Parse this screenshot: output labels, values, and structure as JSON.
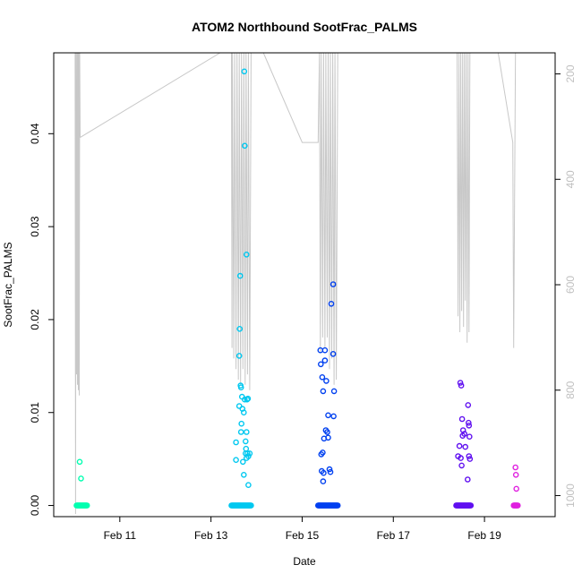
{
  "chart_data": {
    "type": "scatter",
    "title": "ATOM2 Northbound SootFrac_PALMS",
    "xlabel": "Date",
    "ylabel": "SootFrac_PALMS",
    "x_tick_labels": [
      "Feb 11",
      "Feb 13",
      "Feb 15",
      "Feb 17",
      "Feb 19"
    ],
    "x_tick_days": [
      11,
      13,
      15,
      17,
      19
    ],
    "xlim": [
      9.55,
      20.55
    ],
    "ylim": [
      -0.0012,
      0.0487
    ],
    "y_ticks": [
      0.0,
      0.01,
      0.02,
      0.03,
      0.04
    ],
    "y_tick_labels": [
      "0.00",
      "0.01",
      "0.02",
      "0.03",
      "0.04"
    ],
    "right_axis": {
      "label": "",
      "reversed": true,
      "range": [
        160,
        1040
      ],
      "ticks": [
        200,
        400,
        600,
        800,
        1000
      ],
      "tick_labels": [
        "200",
        "400",
        "600",
        "800",
        "1000"
      ],
      "color": "#c0c0c0"
    },
    "color_scale": "day (green-cyan to magenta)",
    "flights": [
      {
        "day_range": [
          10.05,
          10.28
        ],
        "color": "#00ffb0",
        "points": [
          [
            10.12,
            0.0047
          ],
          [
            10.15,
            0.0029
          ]
        ]
      },
      {
        "day_range": [
          13.45,
          13.88
        ],
        "color": "#00c8f0",
        "points": [
          [
            13.55,
            0.0068
          ],
          [
            13.55,
            0.0049
          ],
          [
            13.62,
            0.0107
          ],
          [
            13.62,
            0.0161
          ],
          [
            13.63,
            0.019
          ],
          [
            13.64,
            0.0247
          ],
          [
            13.65,
            0.0129
          ],
          [
            13.66,
            0.0127
          ],
          [
            13.66,
            0.0079
          ],
          [
            13.67,
            0.0088
          ],
          [
            13.68,
            0.0117
          ],
          [
            13.69,
            0.0104
          ],
          [
            13.7,
            0.0047
          ],
          [
            13.72,
            0.0033
          ],
          [
            13.72,
            0.01
          ],
          [
            13.73,
            0.0467
          ],
          [
            13.74,
            0.0114
          ],
          [
            13.74,
            0.0387
          ],
          [
            13.76,
            0.0069
          ],
          [
            13.76,
            0.0056
          ],
          [
            13.77,
            0.0061
          ],
          [
            13.78,
            0.0079
          ],
          [
            13.78,
            0.0051
          ],
          [
            13.78,
            0.027
          ],
          [
            13.79,
            0.0114
          ],
          [
            13.8,
            0.0056
          ],
          [
            13.81,
            0.0115
          ],
          [
            13.82,
            0.0022
          ],
          [
            13.82,
            0.0053
          ],
          [
            13.85,
            0.0056
          ]
        ]
      },
      {
        "day_range": [
          15.35,
          15.78
        ],
        "color": "#0040f0",
        "points": [
          [
            15.4,
            0.0167
          ],
          [
            15.41,
            0.0152
          ],
          [
            15.42,
            0.0055
          ],
          [
            15.43,
            0.0037
          ],
          [
            15.44,
            0.0138
          ],
          [
            15.45,
            0.0057
          ],
          [
            15.46,
            0.0123
          ],
          [
            15.46,
            0.0026
          ],
          [
            15.47,
            0.0035
          ],
          [
            15.48,
            0.0072
          ],
          [
            15.5,
            0.0156
          ],
          [
            15.5,
            0.0167
          ],
          [
            15.52,
            0.0081
          ],
          [
            15.53,
            0.0134
          ],
          [
            15.55,
            0.0079
          ],
          [
            15.57,
            0.0073
          ],
          [
            15.57,
            0.0097
          ],
          [
            15.6,
            0.0039
          ],
          [
            15.62,
            0.0036
          ],
          [
            15.64,
            0.0217
          ],
          [
            15.68,
            0.0163
          ],
          [
            15.68,
            0.0238
          ],
          [
            15.69,
            0.0096
          ],
          [
            15.7,
            0.0123
          ]
        ]
      },
      {
        "day_range": [
          18.38,
          18.7
        ],
        "color": "#6010f0",
        "points": [
          [
            18.42,
            0.0053
          ],
          [
            18.45,
            0.0064
          ],
          [
            18.47,
            0.0132
          ],
          [
            18.48,
            0.0051
          ],
          [
            18.49,
            0.0129
          ],
          [
            18.5,
            0.0043
          ],
          [
            18.51,
            0.0093
          ],
          [
            18.52,
            0.0075
          ],
          [
            18.53,
            0.0081
          ],
          [
            18.56,
            0.0077
          ],
          [
            18.58,
            0.0063
          ],
          [
            18.63,
            0.0028
          ],
          [
            18.64,
            0.0108
          ],
          [
            18.65,
            0.0089
          ],
          [
            18.66,
            0.0086
          ],
          [
            18.66,
            0.0053
          ],
          [
            18.67,
            0.0074
          ],
          [
            18.68,
            0.005
          ]
        ]
      },
      {
        "day_range": [
          19.64,
          19.73
        ],
        "color": "#e020e0",
        "points": [
          [
            19.68,
            0.0041
          ],
          [
            19.69,
            0.0033
          ],
          [
            19.7,
            0.0018
          ]
        ]
      }
    ],
    "altitude_trace": [
      [
        10.02,
        160
      ],
      [
        10.03,
        1035
      ],
      [
        10.04,
        160
      ],
      [
        10.05,
        770
      ],
      [
        10.06,
        160
      ],
      [
        10.07,
        790
      ],
      [
        10.08,
        160
      ],
      [
        10.09,
        800
      ],
      [
        10.1,
        160
      ],
      [
        10.11,
        810
      ],
      [
        10.12,
        160
      ],
      [
        10.13,
        320
      ],
      [
        10.14,
        320
      ],
      [
        13.2,
        160
      ],
      [
        13.35,
        160
      ],
      [
        13.45,
        160
      ],
      [
        13.46,
        720
      ],
      [
        13.47,
        160
      ],
      [
        13.5,
        740
      ],
      [
        13.52,
        160
      ],
      [
        13.55,
        760
      ],
      [
        13.57,
        160
      ],
      [
        13.6,
        780
      ],
      [
        13.62,
        160
      ],
      [
        13.65,
        790
      ],
      [
        13.67,
        160
      ],
      [
        13.7,
        760
      ],
      [
        13.72,
        160
      ],
      [
        13.75,
        790
      ],
      [
        13.77,
        160
      ],
      [
        13.8,
        770
      ],
      [
        13.82,
        160
      ],
      [
        13.85,
        800
      ],
      [
        13.88,
        160
      ],
      [
        14.15,
        160
      ],
      [
        14.6,
        250
      ],
      [
        15.0,
        330
      ],
      [
        15.35,
        330
      ],
      [
        15.38,
        160
      ],
      [
        15.4,
        730
      ],
      [
        15.42,
        160
      ],
      [
        15.45,
        700
      ],
      [
        15.47,
        160
      ],
      [
        15.5,
        720
      ],
      [
        15.52,
        160
      ],
      [
        15.55,
        700
      ],
      [
        15.57,
        160
      ],
      [
        15.6,
        760
      ],
      [
        15.62,
        160
      ],
      [
        15.65,
        740
      ],
      [
        15.67,
        160
      ],
      [
        15.7,
        790
      ],
      [
        15.72,
        160
      ],
      [
        15.75,
        780
      ],
      [
        15.78,
        160
      ],
      [
        16.2,
        160
      ],
      [
        17.0,
        160
      ],
      [
        17.8,
        160
      ],
      [
        18.35,
        160
      ],
      [
        18.4,
        160
      ],
      [
        18.42,
        660
      ],
      [
        18.44,
        160
      ],
      [
        18.46,
        690
      ],
      [
        18.48,
        160
      ],
      [
        18.5,
        650
      ],
      [
        18.52,
        160
      ],
      [
        18.54,
        680
      ],
      [
        18.56,
        160
      ],
      [
        18.58,
        630
      ],
      [
        18.6,
        160
      ],
      [
        18.62,
        710
      ],
      [
        18.64,
        160
      ],
      [
        18.66,
        690
      ],
      [
        18.68,
        160
      ],
      [
        18.9,
        160
      ],
      [
        19.3,
        160
      ],
      [
        19.62,
        330
      ],
      [
        19.64,
        720
      ],
      [
        19.68,
        160
      ]
    ]
  }
}
